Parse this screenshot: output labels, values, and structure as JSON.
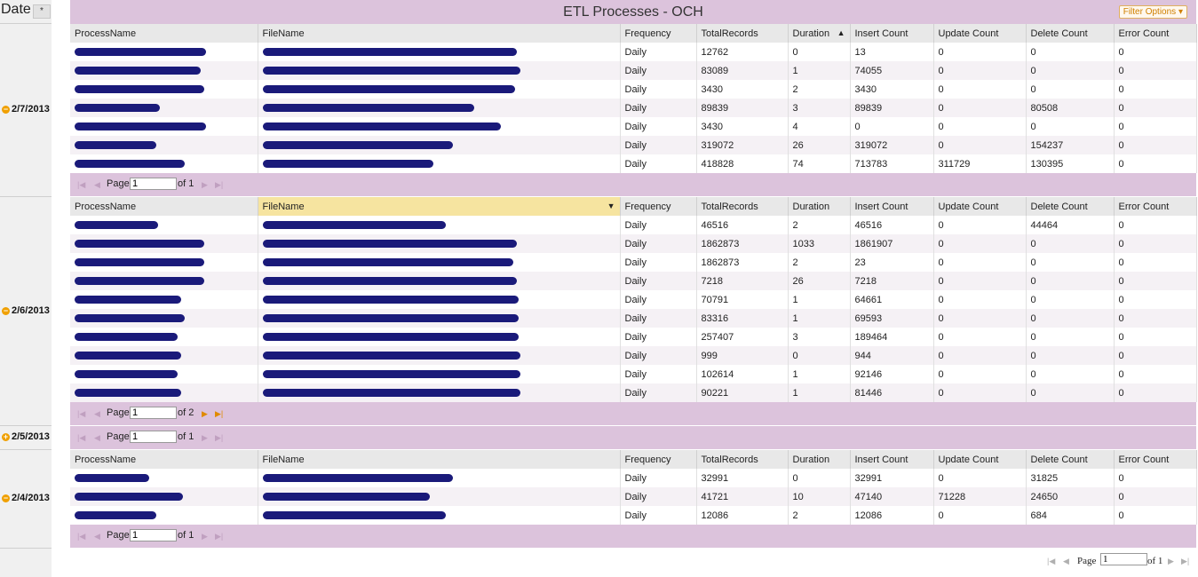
{
  "title": "ETL Processes - OCH",
  "filter_label": "Filter Options",
  "filter_icon": "chevron-down-icon",
  "date_header": "Date",
  "date_sort": "*",
  "columns": [
    "ProcessName",
    "FileName",
    "Frequency",
    "TotalRecords",
    "Duration",
    "Insert Count",
    "Update Count",
    "Delete Count",
    "Error Count"
  ],
  "groups": [
    {
      "date": "2/7/2013",
      "toggle": "−",
      "rows": [
        [
          "Daily",
          "12762",
          "0",
          "13",
          "0",
          "0",
          "0"
        ],
        [
          "Daily",
          "83089",
          "1",
          "74055",
          "0",
          "0",
          "0"
        ],
        [
          "Daily",
          "3430",
          "2",
          "3430",
          "0",
          "0",
          "0"
        ],
        [
          "Daily",
          "89839",
          "3",
          "89839",
          "0",
          "80508",
          "0"
        ],
        [
          "Daily",
          "3430",
          "4",
          "0",
          "0",
          "0",
          "0"
        ],
        [
          "Daily",
          "319072",
          "26",
          "319072",
          "0",
          "154237",
          "0"
        ],
        [
          "Daily",
          "418828",
          "74",
          "713783",
          "311729",
          "130395",
          "0"
        ]
      ],
      "pager": {
        "page_label": "Page",
        "page": "1",
        "of": "of 1"
      }
    },
    {
      "date": "2/6/2013",
      "toggle": "−",
      "rows": [
        [
          "Daily",
          "46516",
          "2",
          "46516",
          "0",
          "44464",
          "0"
        ],
        [
          "Daily",
          "1862873",
          "1033",
          "1861907",
          "0",
          "0",
          "0"
        ],
        [
          "Daily",
          "1862873",
          "2",
          "23",
          "0",
          "0",
          "0"
        ],
        [
          "Daily",
          "7218",
          "26",
          "7218",
          "0",
          "0",
          "0"
        ],
        [
          "Daily",
          "70791",
          "1",
          "64661",
          "0",
          "0",
          "0"
        ],
        [
          "Daily",
          "83316",
          "1",
          "69593",
          "0",
          "0",
          "0"
        ],
        [
          "Daily",
          "257407",
          "3",
          "189464",
          "0",
          "0",
          "0"
        ],
        [
          "Daily",
          "999",
          "0",
          "944",
          "0",
          "0",
          "0"
        ],
        [
          "Daily",
          "102614",
          "1",
          "92146",
          "0",
          "0",
          "0"
        ],
        [
          "Daily",
          "90221",
          "1",
          "81446",
          "0",
          "0",
          "0"
        ]
      ],
      "pager": {
        "page_label": "Page",
        "page": "1",
        "of": "of 2"
      }
    },
    {
      "date": "2/5/2013",
      "toggle": "+",
      "pager": {
        "page_label": "Page",
        "page": "1",
        "of": "of 1"
      }
    },
    {
      "date": "2/4/2013",
      "toggle": "−",
      "rows": [
        [
          "Daily",
          "32991",
          "0",
          "32991",
          "0",
          "31825",
          "0"
        ],
        [
          "Daily",
          "41721",
          "10",
          "47140",
          "71228",
          "24650",
          "0"
        ],
        [
          "Daily",
          "12086",
          "2",
          "12086",
          "0",
          "684",
          "0"
        ]
      ],
      "pager": {
        "page_label": "Page",
        "page": "1",
        "of": "of 1"
      }
    }
  ],
  "global_pager": {
    "page_label": "Page",
    "page": "1",
    "of": "of 1"
  }
}
